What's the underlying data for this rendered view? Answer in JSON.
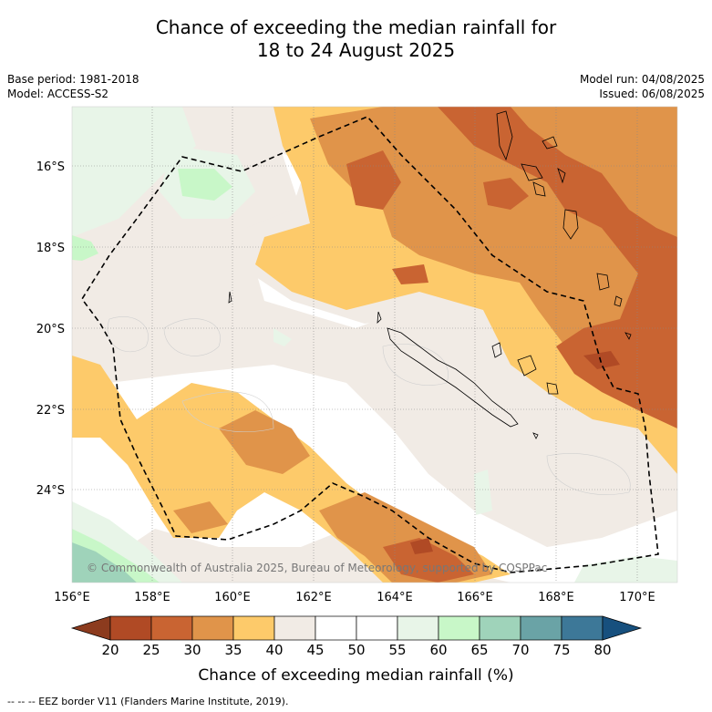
{
  "title_line1": "Chance of exceeding the median rainfall for",
  "title_line2": "18 to 24 August 2025",
  "base_period": "Base period: 1981-2018",
  "model": "Model: ACCESS-S2",
  "model_run": "Model run: 04/08/2025",
  "issued": "Issued: 06/08/2025",
  "lat_labels": [
    "16°S",
    "18°S",
    "20°S",
    "22°S",
    "24°S"
  ],
  "lon_labels": [
    "156°E",
    "158°E",
    "160°E",
    "162°E",
    "164°E",
    "166°E",
    "168°E",
    "170°E"
  ],
  "copyright": "© Commonwealth of Australia 2025, Bureau of Meteorology, supported by COSPPac",
  "colorbar": {
    "ticks": [
      "20",
      "25",
      "30",
      "35",
      "40",
      "45",
      "50",
      "55",
      "60",
      "65",
      "70",
      "75",
      "80"
    ],
    "colors": [
      "#8c3b1e",
      "#b04a25",
      "#c96432",
      "#e0944a",
      "#fdca6a",
      "#f1ebe5",
      "#ffffff",
      "#ffffff",
      "#e8f5e8",
      "#c8f7c8",
      "#9fd3ba",
      "#6aa3a6",
      "#3d7898",
      "#17507e"
    ],
    "title": "Chance of exceeding median rainfall (%)"
  },
  "footer": "--  --  -- EEZ border V11 (Flanders Marine Institute, 2019)."
}
